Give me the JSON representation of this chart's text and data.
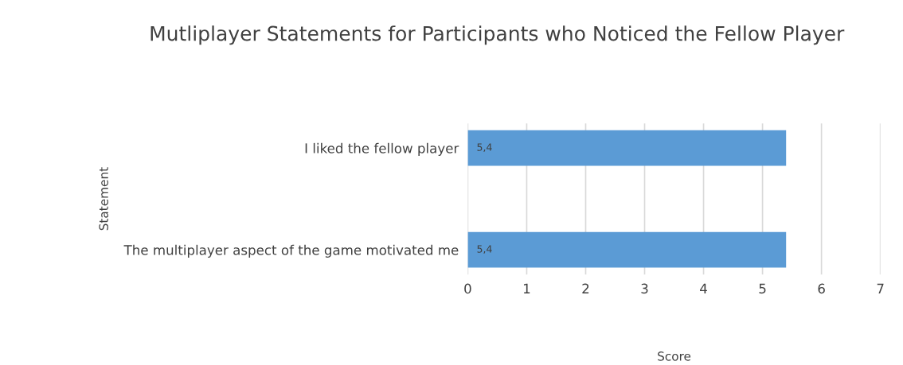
{
  "chart_data": {
    "type": "bar",
    "orientation": "horizontal",
    "title": "Mutliplayer Statements for Participants who Noticed the Fellow Player",
    "xlabel": "Score",
    "ylabel": "Statement",
    "categories": [
      "I liked the fellow player",
      "The multiplayer aspect of the game motivated me"
    ],
    "values": [
      5.4,
      5.4
    ],
    "value_labels": [
      "5,4",
      "5,4"
    ],
    "color": "#5b9bd5",
    "xlim": [
      0,
      7
    ],
    "xticks": [
      0,
      1,
      2,
      3,
      4,
      5,
      6,
      7
    ],
    "grid": "x"
  }
}
